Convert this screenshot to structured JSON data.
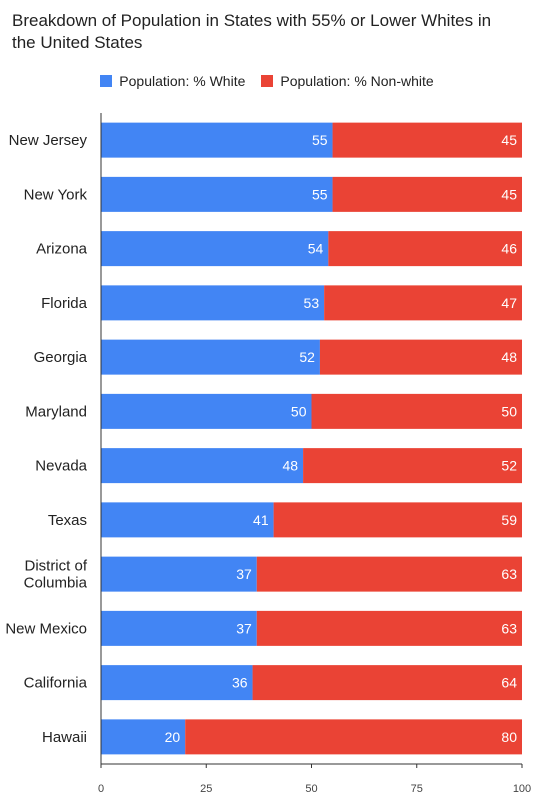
{
  "chart_data": {
    "type": "bar",
    "orientation": "horizontal",
    "stacked": true,
    "title": "Breakdown of Population in States with 55% or Lower Whites in the United States",
    "categories": [
      "New Jersey",
      "New York",
      "Arizona",
      "Florida",
      "Georgia",
      "Maryland",
      "Nevada",
      "Texas",
      "District of Columbia",
      "New Mexico",
      "California",
      "Hawaii"
    ],
    "series": [
      {
        "name": "Population: % White",
        "color": "#4285f4",
        "values": [
          55,
          55,
          54,
          53,
          52,
          50,
          48,
          41,
          37,
          37,
          36,
          20
        ]
      },
      {
        "name": "Population: % Non-white",
        "color": "#ea4335",
        "values": [
          45,
          45,
          46,
          47,
          48,
          50,
          52,
          59,
          63,
          63,
          64,
          80
        ]
      }
    ],
    "xlim": [
      0,
      100
    ],
    "xticks": [
      "0",
      "25",
      "50",
      "75",
      "100"
    ],
    "xlabel": "",
    "ylabel": "",
    "legend": "top",
    "grid": false,
    "data_labels": true
  }
}
